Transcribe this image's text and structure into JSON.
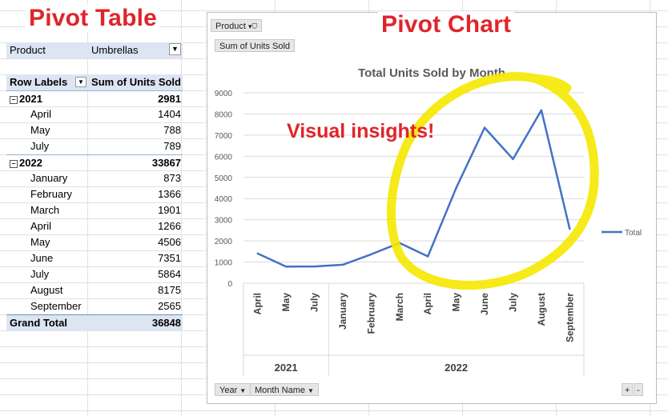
{
  "headings": {
    "pivot_table": "Pivot Table",
    "pivot_chart": "Pivot Chart"
  },
  "pivot_table": {
    "filter": {
      "label": "Product",
      "value": "Umbrellas"
    },
    "row_labels_header": "Row Labels",
    "value_header": "Sum of Units Sold",
    "rows": [
      {
        "label": "2021",
        "value": "2981",
        "level": 0
      },
      {
        "label": "April",
        "value": "1404",
        "level": 1
      },
      {
        "label": "May",
        "value": "788",
        "level": 1
      },
      {
        "label": "July",
        "value": "789",
        "level": 1
      },
      {
        "label": "2022",
        "value": "33867",
        "level": 0
      },
      {
        "label": "January",
        "value": "873",
        "level": 1
      },
      {
        "label": "February",
        "value": "1366",
        "level": 1
      },
      {
        "label": "March",
        "value": "1901",
        "level": 1
      },
      {
        "label": "April",
        "value": "1266",
        "level": 1
      },
      {
        "label": "May",
        "value": "4506",
        "level": 1
      },
      {
        "label": "June",
        "value": "7351",
        "level": 1
      },
      {
        "label": "July",
        "value": "5864",
        "level": 1
      },
      {
        "label": "August",
        "value": "8175",
        "level": 1
      },
      {
        "label": "September",
        "value": "2565",
        "level": 1
      }
    ],
    "grand_total": {
      "label": "Grand Total",
      "value": "36848"
    }
  },
  "chart_controls": {
    "product_filter": "Product",
    "value_field": "Sum of Units Sold",
    "year_field": "Year",
    "month_field": "Month Name",
    "zoom_plus": "+",
    "zoom_minus": "-"
  },
  "annotation": {
    "text": "Visual insights!",
    "highlight_color": "#f5e800"
  },
  "chart_data": {
    "type": "line",
    "title": "Total Units Sold by Month",
    "categories": [
      "April",
      "May",
      "July",
      "January",
      "February",
      "March",
      "April",
      "May",
      "June",
      "July",
      "August",
      "September"
    ],
    "groups": [
      {
        "label": "2021",
        "count": 3
      },
      {
        "label": "2022",
        "count": 9
      }
    ],
    "series": [
      {
        "name": "Total",
        "color": "#4472c4",
        "values": [
          1404,
          788,
          789,
          873,
          1366,
          1901,
          1266,
          4506,
          7351,
          5864,
          8175,
          2565
        ]
      }
    ],
    "ylim": [
      0,
      9000
    ],
    "yticks": [
      0,
      1000,
      2000,
      3000,
      4000,
      5000,
      6000,
      7000,
      8000,
      9000
    ],
    "grid": true,
    "legend": "right"
  }
}
